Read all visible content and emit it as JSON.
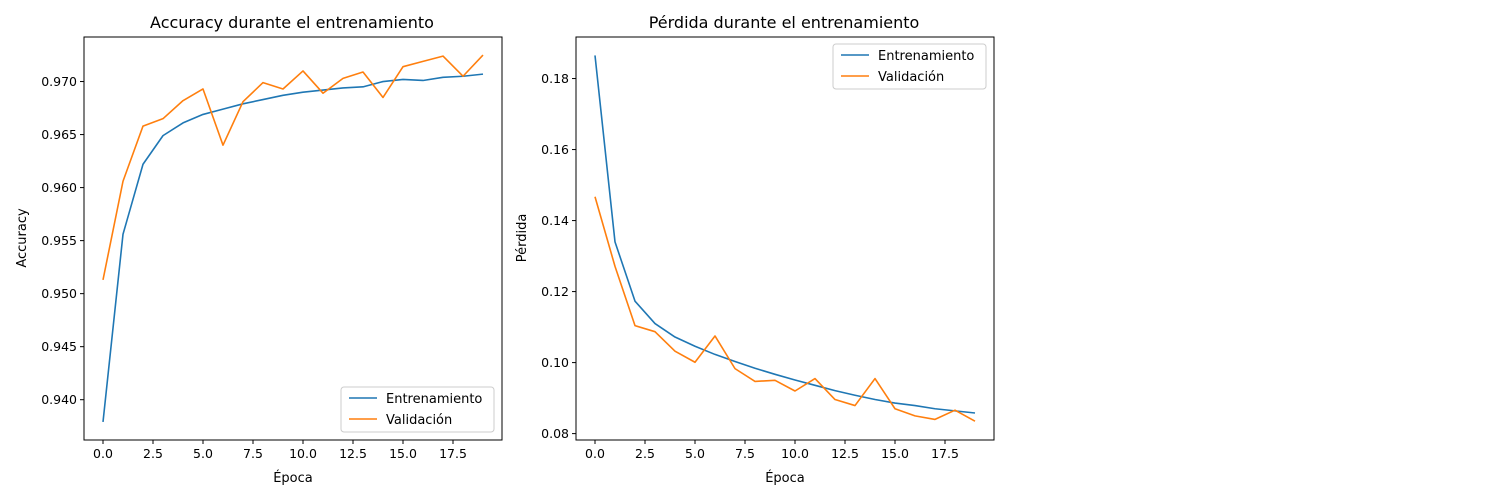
{
  "chart_data": [
    {
      "type": "line",
      "title": "Accuracy durante el entrenamiento",
      "xlabel": "Época",
      "ylabel": "Accuracy",
      "xlim": [
        -0.95,
        19.95
      ],
      "ylim": [
        0.9362,
        0.9742
      ],
      "xticks": [
        0,
        2.5,
        5,
        7.5,
        10,
        12.5,
        15,
        17.5
      ],
      "xtick_labels": [
        "0.0",
        "2.5",
        "5.0",
        "7.5",
        "10.0",
        "12.5",
        "15.0",
        "17.5"
      ],
      "yticks": [
        0.94,
        0.945,
        0.95,
        0.955,
        0.96,
        0.965,
        0.97
      ],
      "ytick_labels": [
        "0.940",
        "0.945",
        "0.950",
        "0.955",
        "0.960",
        "0.965",
        "0.970"
      ],
      "legend_position": "lower-right",
      "grid": false,
      "x": [
        0,
        1,
        2,
        3,
        4,
        5,
        6,
        7,
        8,
        9,
        10,
        11,
        12,
        13,
        14,
        15,
        16,
        17,
        18,
        19
      ],
      "series": [
        {
          "name": "Entrenamiento",
          "color": "#1f77b4",
          "values": [
            0.9379,
            0.9556,
            0.9622,
            0.9649,
            0.9661,
            0.9669,
            0.9674,
            0.9679,
            0.9683,
            0.9687,
            0.969,
            0.9692,
            0.9694,
            0.9695,
            0.97,
            0.9702,
            0.9701,
            0.9704,
            0.9705,
            0.9707
          ]
        },
        {
          "name": "Validación",
          "color": "#ff7f0e",
          "values": [
            0.9513,
            0.9606,
            0.9658,
            0.9665,
            0.9682,
            0.9693,
            0.964,
            0.9681,
            0.9699,
            0.9693,
            0.971,
            0.9689,
            0.9703,
            0.9709,
            0.9685,
            0.9714,
            0.9719,
            0.9724,
            0.9705,
            0.9725
          ]
        }
      ]
    },
    {
      "type": "line",
      "title": "Pérdida durante el entrenamiento",
      "xlabel": "Época",
      "ylabel": "Pérdida",
      "xlim": [
        -0.95,
        19.95
      ],
      "ylim": [
        0.0782,
        0.1917
      ],
      "xticks": [
        0,
        2.5,
        5,
        7.5,
        10,
        12.5,
        15,
        17.5
      ],
      "xtick_labels": [
        "0.0",
        "2.5",
        "5.0",
        "7.5",
        "10.0",
        "12.5",
        "15.0",
        "17.5"
      ],
      "yticks": [
        0.08,
        0.1,
        0.12,
        0.14,
        0.16,
        0.18
      ],
      "ytick_labels": [
        "0.08",
        "0.10",
        "0.12",
        "0.14",
        "0.16",
        "0.18"
      ],
      "legend_position": "upper-right",
      "grid": false,
      "x": [
        0,
        1,
        2,
        3,
        4,
        5,
        6,
        7,
        8,
        9,
        10,
        11,
        12,
        13,
        14,
        15,
        16,
        17,
        18,
        19
      ],
      "series": [
        {
          "name": "Entrenamiento",
          "color": "#1f77b4",
          "values": [
            0.1865,
            0.134,
            0.1173,
            0.111,
            0.1072,
            0.1046,
            0.1023,
            0.1003,
            0.0984,
            0.0967,
            0.0951,
            0.0936,
            0.0921,
            0.0908,
            0.0896,
            0.0886,
            0.0879,
            0.087,
            0.0864,
            0.0858
          ]
        },
        {
          "name": "Validación",
          "color": "#ff7f0e",
          "values": [
            0.1467,
            0.1271,
            0.1104,
            0.1087,
            0.1032,
            0.1001,
            0.1075,
            0.0983,
            0.0947,
            0.095,
            0.092,
            0.0955,
            0.0896,
            0.0879,
            0.0955,
            0.087,
            0.085,
            0.084,
            0.0866,
            0.0835
          ]
        }
      ]
    }
  ]
}
